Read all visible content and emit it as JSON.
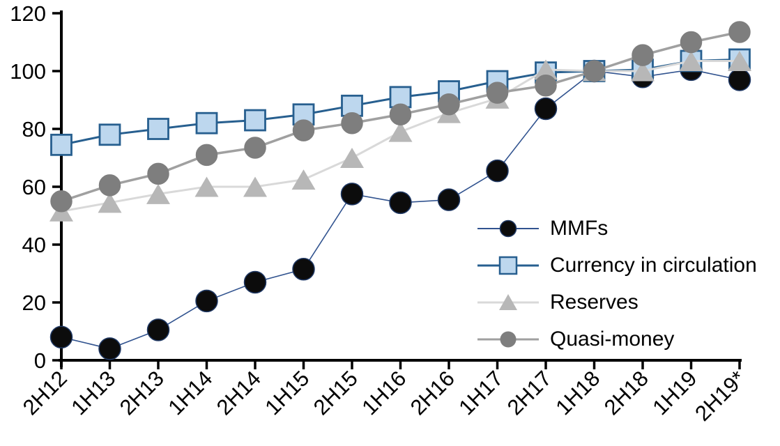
{
  "chart_data": {
    "type": "line",
    "title": "",
    "xlabel": "",
    "ylabel": "",
    "ylim": [
      0,
      120
    ],
    "y_ticks": [
      0,
      20,
      40,
      60,
      80,
      100,
      120
    ],
    "grid": false,
    "legend_position": "inside-right",
    "axis_color": "#000000",
    "categories": [
      "2H12",
      "1H13",
      "2H13",
      "1H14",
      "2H14",
      "1H15",
      "2H15",
      "1H16",
      "2H16",
      "1H17",
      "2H17",
      "1H18",
      "2H18",
      "1H19",
      "2H19*"
    ],
    "series": [
      {
        "name": "MMFs",
        "marker": "circle",
        "line_color": "#31538f",
        "marker_fill": "#0c0c0c",
        "marker_stroke": "#1f3864",
        "values": [
          8,
          4,
          10.5,
          20.5,
          27,
          31.5,
          57.5,
          54.5,
          55.5,
          65.5,
          87,
          100,
          98,
          100.5,
          97
        ]
      },
      {
        "name": "Currency in circulation",
        "marker": "square",
        "line_color": "#275f8f",
        "marker_fill": "#bdd7ee",
        "marker_stroke": "#275f8f",
        "values": [
          74.5,
          78,
          80,
          82,
          83,
          85,
          88,
          91,
          93,
          96.5,
          99.5,
          100,
          100.5,
          103.5,
          104
        ]
      },
      {
        "name": "Reserves",
        "marker": "triangle",
        "line_color": "#d9d9d9",
        "marker_fill": "#b7b7b7",
        "marker_stroke": "#b7b7b7",
        "values": [
          51.5,
          54.5,
          57.5,
          60,
          60,
          62.5,
          70,
          79,
          85.5,
          90.5,
          100.5,
          100,
          100,
          103.5,
          103.5
        ]
      },
      {
        "name": "Quasi-money",
        "marker": "circle",
        "line_color": "#a0a0a0",
        "marker_fill": "#7e7e7e",
        "marker_stroke": "#7e7e7e",
        "values": [
          55,
          60.5,
          64.5,
          71,
          73.5,
          79.5,
          82,
          85,
          88.5,
          92.5,
          95,
          100,
          105.5,
          110,
          113.5
        ]
      }
    ]
  }
}
